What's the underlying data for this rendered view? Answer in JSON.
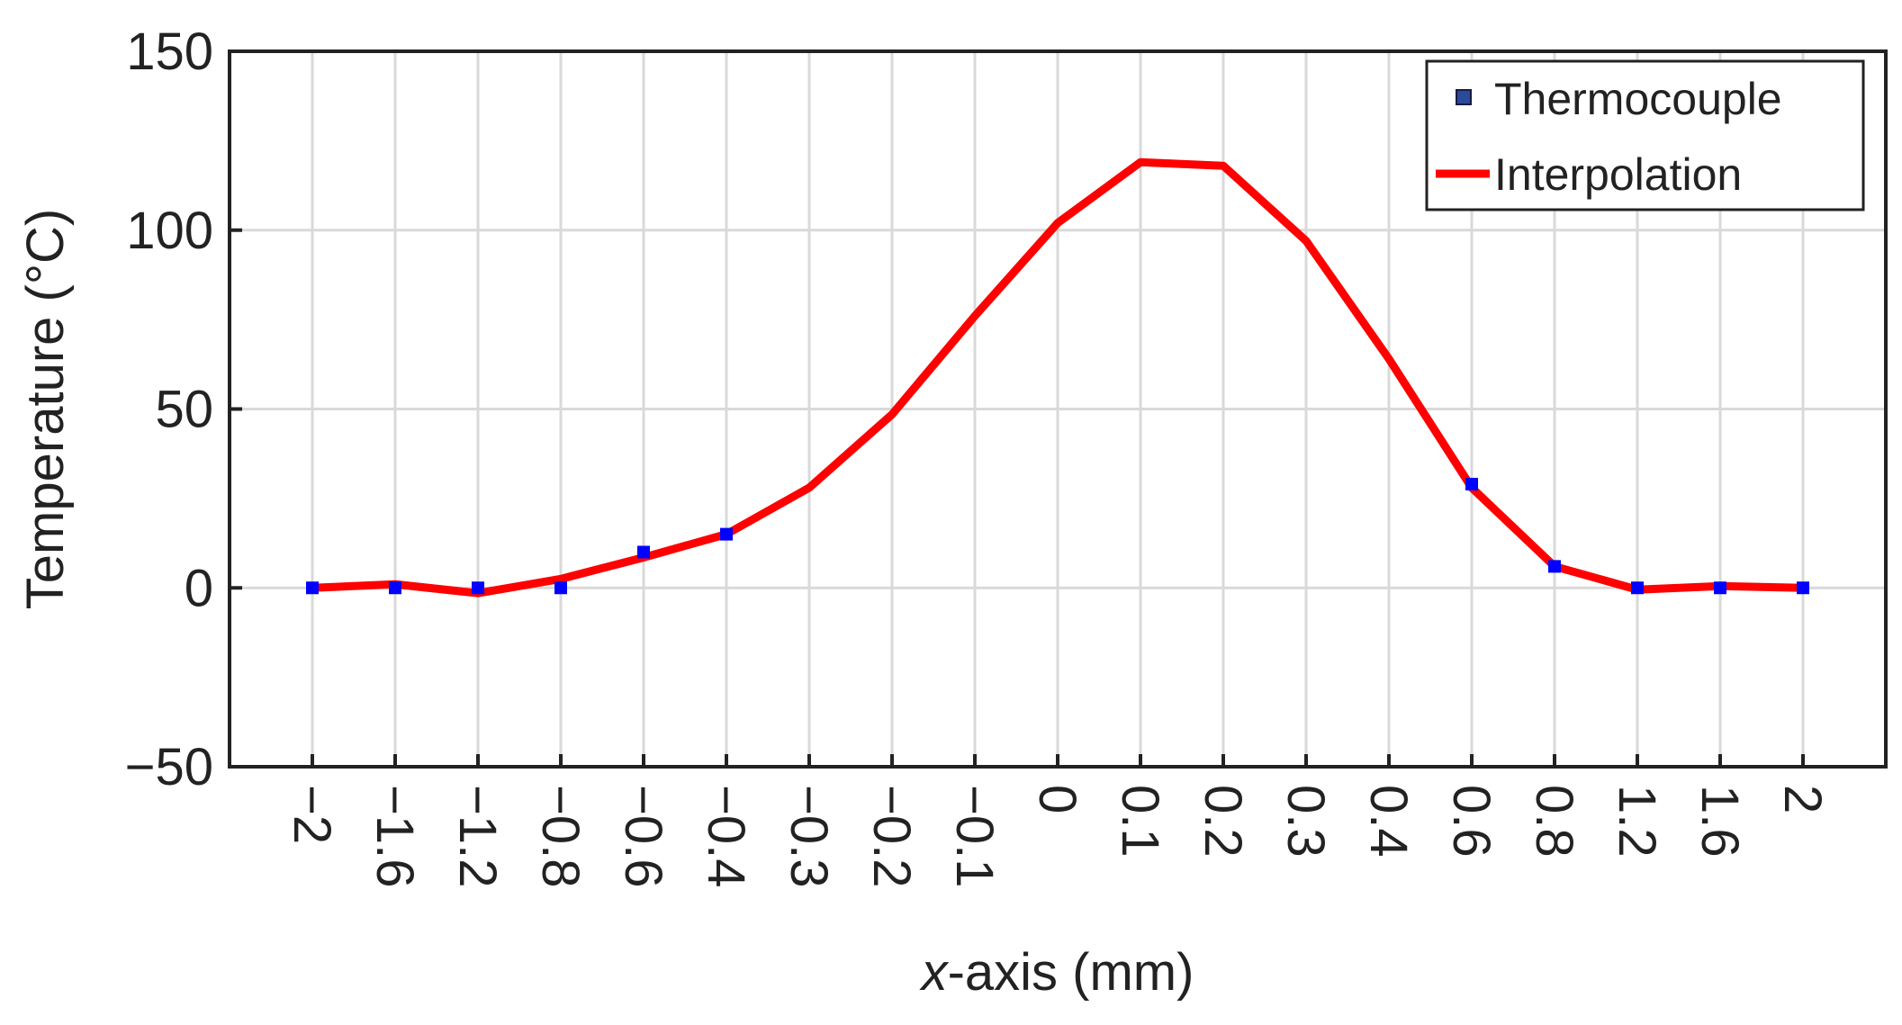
{
  "chart_data": {
    "type": "line",
    "title": "",
    "xlabel_italic": "x",
    "xlabel_rest": "-axis (mm)",
    "ylabel": "Temperature (°C)",
    "ylim": [
      -50,
      150
    ],
    "yticks": [
      -50,
      0,
      50,
      100,
      150
    ],
    "ytick_labels": [
      "−50",
      "0",
      "50",
      "100",
      "150"
    ],
    "categories": [
      "-2",
      "-1.6",
      "-1.2",
      "-0.8",
      "-0.6",
      "-0.4",
      "-0.3",
      "-0.2",
      "-0.1",
      "0",
      "0.1",
      "0.2",
      "0.3",
      "0.4",
      "0.6",
      "0.8",
      "1.2",
      "1.6",
      "2"
    ],
    "xtick_labels": [
      "−2",
      "−1.6",
      "−1.2",
      "−0.8",
      "−0.6",
      "−0.4",
      "−0.3",
      "−0.2",
      "−0.1",
      "0",
      "0.1",
      "0.2",
      "0.3",
      "0.4",
      "0.6",
      "0.8",
      "1.2",
      "1.6",
      "2"
    ],
    "grid": true,
    "legend_position": "top-right",
    "series": [
      {
        "name": "Thermocouple",
        "style": "markers",
        "color": "#0000ff",
        "x": [
          "-2",
          "-1.6",
          "-1.2",
          "-0.8",
          "-0.6",
          "-0.4",
          "0.6",
          "0.8",
          "1.2",
          "1.6",
          "2"
        ],
        "values": [
          0,
          0,
          0,
          0,
          10,
          15,
          29,
          6,
          0,
          0,
          0
        ]
      },
      {
        "name": "Interpolation",
        "style": "line",
        "color": "#ff0000",
        "x": [
          "-2",
          "-1.6",
          "-1.2",
          "-0.8",
          "-0.6",
          "-0.4",
          "-0.3",
          "-0.2",
          "-0.1",
          "0",
          "0.1",
          "0.2",
          "0.3",
          "0.4",
          "0.6",
          "0.8",
          "1.2",
          "1.6",
          "2"
        ],
        "values": [
          0,
          1,
          -1.5,
          2.5,
          8.5,
          15,
          28,
          48.5,
          76,
          102,
          119,
          118,
          97,
          64,
          28,
          6,
          -0.5,
          0.5,
          0
        ]
      }
    ]
  }
}
